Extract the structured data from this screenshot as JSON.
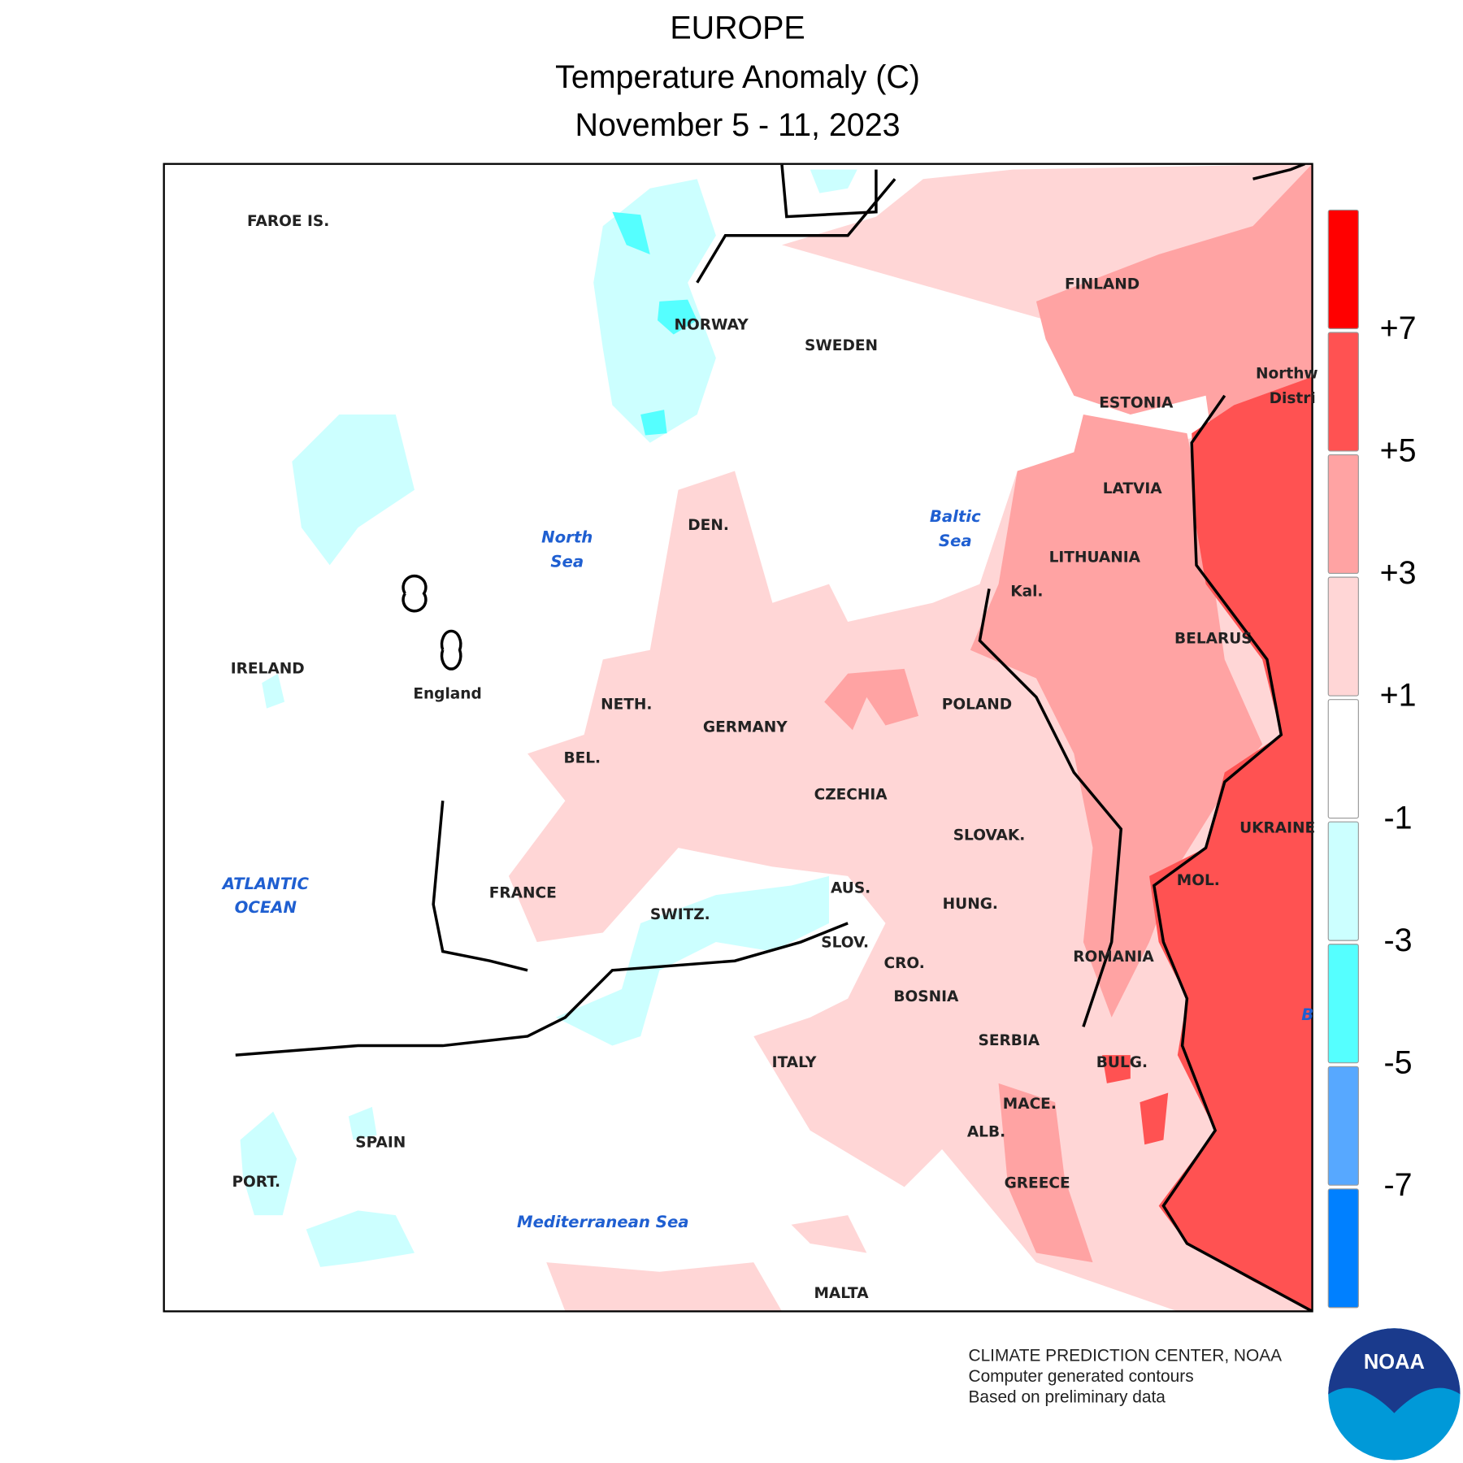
{
  "header": {
    "title": "EUROPE",
    "subtitle": "Temperature Anomaly (C)",
    "dates": "November 5 - 11, 2023"
  },
  "labels": [
    {
      "text": "FAROE IS."
    },
    {
      "text": "NORWAY"
    },
    {
      "text": "SWEDEN"
    },
    {
      "text": "FINLAND"
    },
    {
      "text": "ESTONIA"
    },
    {
      "text": "LATVIA"
    },
    {
      "text": "LITHUANIA"
    },
    {
      "text": "BELARUS"
    },
    {
      "text": "Kal."
    },
    {
      "text": "DEN."
    },
    {
      "text": "North",
      "color": "#1f5fd1"
    },
    {
      "text": "Sea",
      "color": "#1f5fd1"
    },
    {
      "text": "Baltic",
      "color": "#1f5fd1"
    },
    {
      "text": "Sea",
      "color": "#1f5fd1"
    },
    {
      "text": "IRELAND"
    },
    {
      "text": "England"
    },
    {
      "text": "NETH."
    },
    {
      "text": "BEL."
    },
    {
      "text": "GERMANY"
    },
    {
      "text": "POLAND"
    },
    {
      "text": "CZECHIA"
    },
    {
      "text": "SLOVAK."
    },
    {
      "text": "UKRAINE"
    },
    {
      "text": "Northw"
    },
    {
      "text": "Distri"
    },
    {
      "text": "ATLANTIC",
      "color": "#1f5fd1"
    },
    {
      "text": "OCEAN",
      "color": "#1f5fd1"
    },
    {
      "text": "FRANCE"
    },
    {
      "text": "SWITZ."
    },
    {
      "text": "AUS."
    },
    {
      "text": "HUNG."
    },
    {
      "text": "MOL."
    },
    {
      "text": "SLOV."
    },
    {
      "text": "CRO."
    },
    {
      "text": "ROMANIA"
    },
    {
      "text": "BOSNIA"
    },
    {
      "text": "SERBIA"
    },
    {
      "text": "BULG."
    },
    {
      "text": "ITALY"
    },
    {
      "text": "MACE."
    },
    {
      "text": "ALB."
    },
    {
      "text": "SPAIN"
    },
    {
      "text": "PORT."
    },
    {
      "text": "GREECE"
    },
    {
      "text": "Mediterranean Sea",
      "color": "#1f5fd1"
    },
    {
      "text": "MALTA"
    },
    {
      "text": "B",
      "color": "#1f5fd1"
    }
  ],
  "colorbar": {
    "colors": [
      "#ff0000",
      "#ff5252",
      "#ffa3a3",
      "#ffd6d6",
      "#ffffff",
      "#ccffff",
      "#55ffff",
      "#57a8ff",
      "#0080ff"
    ],
    "ticks": [
      {
        "value": 7,
        "label": "+7"
      },
      {
        "value": 5,
        "label": "+5"
      },
      {
        "value": 3,
        "label": "+3"
      },
      {
        "value": 1,
        "label": "+1"
      },
      -1,
      -3,
      -5,
      -7
    ]
  },
  "footer": [
    "CLIMATE PREDICTION CENTER, NOAA",
    "Computer generated contours",
    "Based on preliminary data"
  ],
  "logo": "NOAA"
}
